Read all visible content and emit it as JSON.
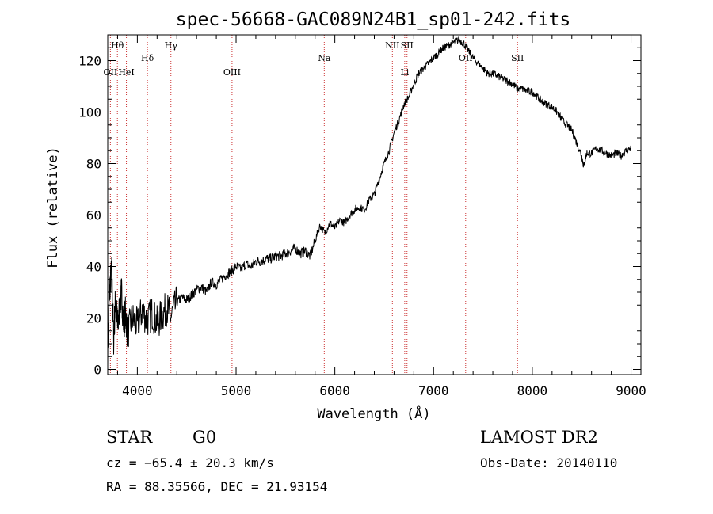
{
  "chart_data": {
    "type": "line",
    "title": "spec-56668-GAC089N24B1_sp01-242.fits",
    "xlabel": "Wavelength (Å)",
    "ylabel": "Flux (relative)",
    "xlim": [
      3700,
      9100
    ],
    "ylim": [
      -2,
      130
    ],
    "x_ticks": [
      4000,
      5000,
      6000,
      7000,
      8000,
      9000
    ],
    "y_ticks": [
      0,
      20,
      40,
      60,
      80,
      100,
      120
    ],
    "spectrum": {
      "x": [
        3700,
        3720,
        3740,
        3760,
        3780,
        3800,
        3820,
        3840,
        3860,
        3880,
        3900,
        3950,
        4000,
        4050,
        4100,
        4150,
        4200,
        4250,
        4300,
        4340,
        4400,
        4450,
        4500,
        4550,
        4600,
        4650,
        4700,
        4750,
        4800,
        4850,
        4900,
        4950,
        5000,
        5050,
        5100,
        5150,
        5200,
        5250,
        5300,
        5350,
        5400,
        5450,
        5500,
        5550,
        5600,
        5650,
        5700,
        5750,
        5800,
        5850,
        5900,
        5950,
        6000,
        6050,
        6100,
        6150,
        6200,
        6250,
        6300,
        6350,
        6400,
        6450,
        6500,
        6550,
        6600,
        6650,
        6700,
        6750,
        6800,
        6850,
        6900,
        6950,
        7000,
        7050,
        7100,
        7150,
        7200,
        7250,
        7300,
        7350,
        7400,
        7450,
        7500,
        7550,
        7600,
        7650,
        7700,
        7750,
        7800,
        7850,
        7900,
        7950,
        8000,
        8050,
        8100,
        8150,
        8200,
        8250,
        8300,
        8350,
        8400,
        8450,
        8500,
        8520,
        8550,
        8600,
        8650,
        8700,
        8750,
        8800,
        8850,
        8900,
        8950,
        9000
      ],
      "y": [
        8,
        32,
        38,
        12,
        28,
        16,
        24,
        30,
        18,
        22,
        14,
        20,
        17,
        23,
        19,
        22,
        18,
        21,
        24,
        20,
        26,
        28,
        27,
        29,
        31,
        32,
        30,
        34,
        33,
        35,
        37,
        38,
        40,
        39,
        41,
        40,
        42,
        42,
        43,
        43,
        44,
        44,
        45,
        46,
        47,
        45,
        46,
        44,
        50,
        56,
        53,
        57,
        55,
        58,
        57,
        60,
        62,
        63,
        62,
        66,
        68,
        74,
        80,
        85,
        92,
        97,
        103,
        106,
        111,
        115,
        117,
        119,
        121,
        123,
        125,
        126,
        127,
        128,
        127,
        124,
        121,
        119,
        117,
        115,
        115,
        114,
        113,
        112,
        111,
        109,
        109,
        108,
        108,
        106,
        104,
        103,
        102,
        100,
        97,
        95,
        93,
        88,
        83,
        79,
        84,
        84,
        86,
        85,
        84,
        83,
        84,
        83,
        85,
        86
      ]
    },
    "spectral_lines": [
      {
        "label": "Hθ",
        "wavelength": 3798,
        "row": "top"
      },
      {
        "label": "OII",
        "wavelength": 3727,
        "row": "low"
      },
      {
        "label": "HeI",
        "wavelength": 3889,
        "row": "low"
      },
      {
        "label": "Hδ",
        "wavelength": 4102,
        "row": "mid"
      },
      {
        "label": "Hγ",
        "wavelength": 4340,
        "row": "top"
      },
      {
        "label": "OIII",
        "wavelength": 4959,
        "row": "low"
      },
      {
        "label": "Na",
        "wavelength": 5893,
        "row": "mid"
      },
      {
        "label": "NII",
        "wavelength": 6583,
        "row": "top"
      },
      {
        "label": "Li",
        "wavelength": 6708,
        "row": "low"
      },
      {
        "label": "SII",
        "wavelength": 6731,
        "row": "top"
      },
      {
        "label": "OII",
        "wavelength": 7325,
        "row": "mid"
      },
      {
        "label": "SII",
        "wavelength": 7850,
        "row": "mid"
      }
    ],
    "grid": false,
    "line_color": "#000000",
    "marker_color": "#cc3333"
  },
  "info": {
    "object_class": "STAR",
    "subclass": "G0",
    "survey": "LAMOST DR2",
    "redshift": "cz = −65.4 ± 20.3 km/s",
    "obs_date": "Obs-Date: 20140110",
    "coords": "RA =  88.35566, DEC =  21.93154"
  }
}
